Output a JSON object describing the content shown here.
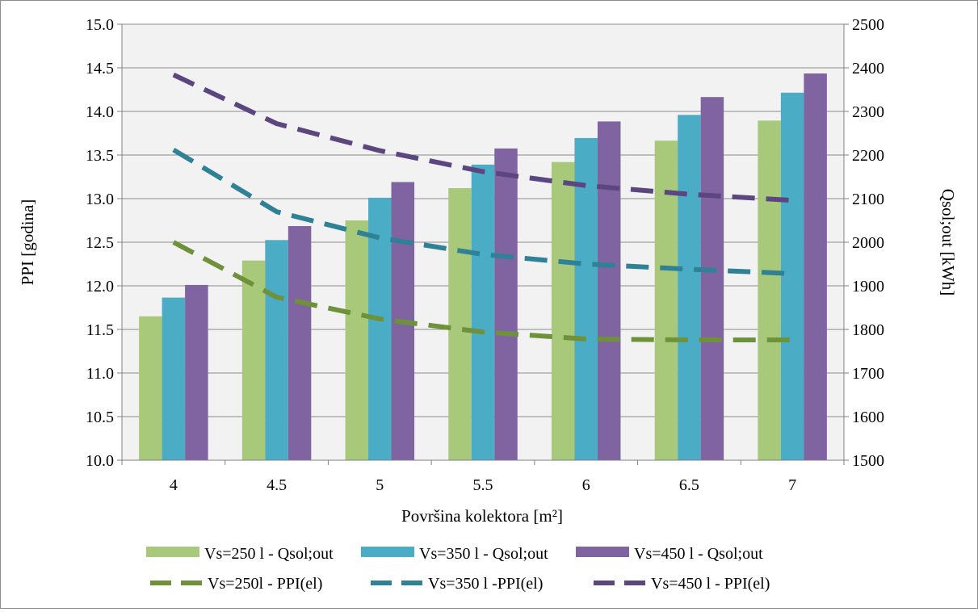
{
  "chart_data": {
    "type": "bar",
    "categories": [
      "4",
      "4.5",
      "5",
      "5.5",
      "6",
      "6.5",
      "7"
    ],
    "xlabel": "Površina kolektora [m²]",
    "ylabel": "PPI  [godina]",
    "y2label": "Qsol;out [kWh]",
    "ylim": [
      10.0,
      15.0
    ],
    "y2lim": [
      1500,
      2500
    ],
    "yticks": [
      "10.0",
      "10.5",
      "11.0",
      "11.5",
      "12.0",
      "12.5",
      "13.0",
      "13.5",
      "14.0",
      "14.5",
      "15.0"
    ],
    "y2ticks": [
      "1500",
      "1600",
      "1700",
      "1800",
      "1900",
      "2000",
      "2100",
      "2200",
      "2300",
      "2400",
      "2500"
    ],
    "grid": true,
    "legend_position": "bottom",
    "bar_series": [
      {
        "name": "Vs=250 l - Qsol;out",
        "color": "#a9c97a",
        "axis": "right",
        "values": [
          1830,
          1958,
          2050,
          2124,
          2184,
          2233,
          2279
        ]
      },
      {
        "name": "Vs=350 l - Qsol;out",
        "color": "#4bacc6",
        "axis": "right",
        "values": [
          1873,
          2005,
          2102,
          2178,
          2239,
          2292,
          2343
        ]
      },
      {
        "name": "Vs=450 l - Qsol;out",
        "color": "#8064a2",
        "axis": "right",
        "values": [
          1902,
          2037,
          2138,
          2215,
          2277,
          2333,
          2387
        ]
      }
    ],
    "line_series": [
      {
        "name": "Vs=250l - PPI(el)",
        "color": "#6e923a",
        "axis": "left",
        "values": [
          12.5,
          11.87,
          11.62,
          11.47,
          11.39,
          11.38,
          11.38
        ]
      },
      {
        "name": "Vs=350 l -PPI(el)",
        "color": "#2f8196",
        "axis": "left",
        "values": [
          13.56,
          12.85,
          12.55,
          12.36,
          12.25,
          12.19,
          12.14
        ]
      },
      {
        "name": "Vs=450 l - PPI(el)",
        "color": "#5c4680",
        "axis": "left",
        "values": [
          14.42,
          13.86,
          13.55,
          13.31,
          13.15,
          13.05,
          12.98
        ]
      }
    ]
  }
}
